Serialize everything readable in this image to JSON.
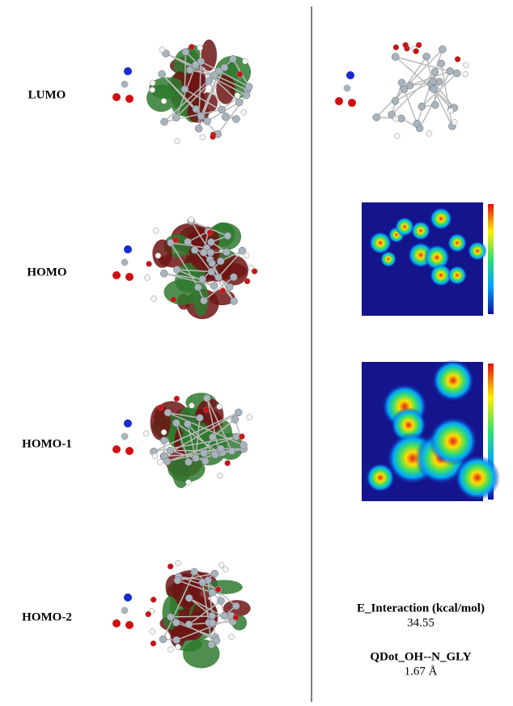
{
  "rows": [
    {
      "label": "LUMO"
    },
    {
      "label": "HOMO"
    },
    {
      "label": "HOMO-1"
    },
    {
      "label": "HOMO-2"
    }
  ],
  "interaction": {
    "energy_label": "E_Interaction (kcal/mol)",
    "energy_value": "34.55",
    "bond_label": "QDot_OH--N_GLY",
    "bond_value": "1.67 Å"
  }
}
